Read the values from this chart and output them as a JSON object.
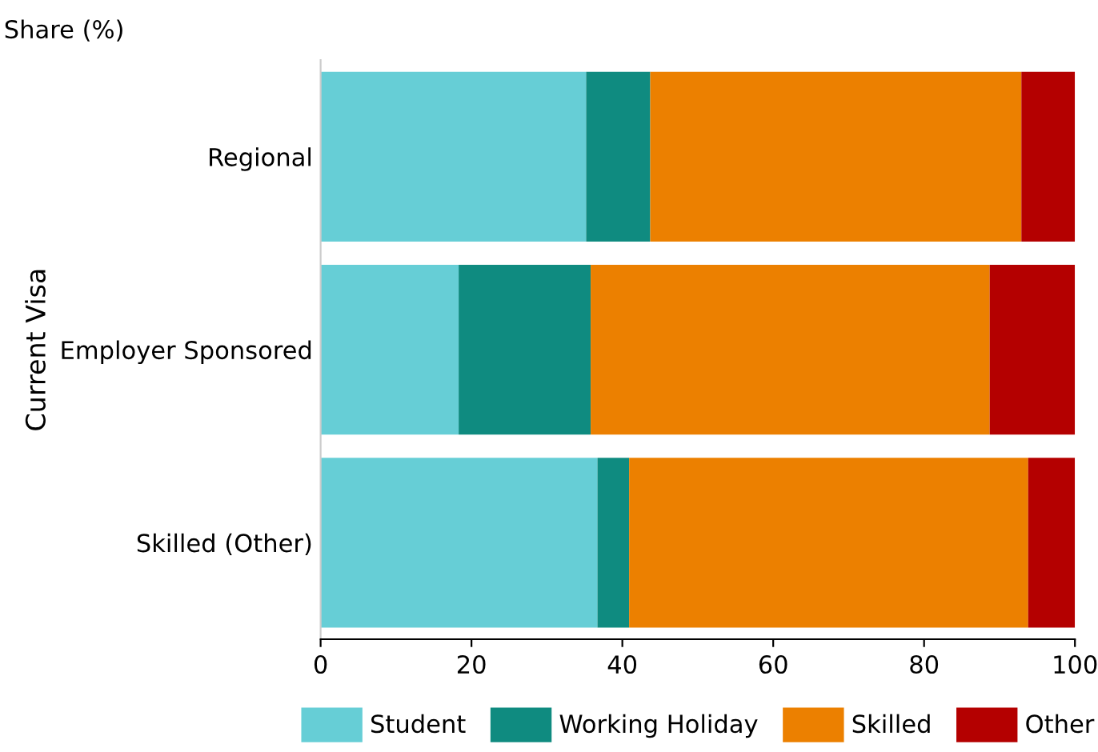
{
  "chart_data": {
    "type": "bar",
    "orientation": "horizontal",
    "stacked": true,
    "xlabel": "Share (%)",
    "ylabel": "Current Visa",
    "categories": [
      "Regional",
      "Employer Sponsored",
      "Skilled (Other)"
    ],
    "series": [
      {
        "name": "Student",
        "color": "#66ced6",
        "values": [
          35.2,
          18.3,
          36.7
        ]
      },
      {
        "name": "Working Holiday",
        "color": "#0f8b80",
        "values": [
          8.5,
          17.5,
          4.2
        ]
      },
      {
        "name": "Skilled",
        "color": "#ec8000",
        "values": [
          49.2,
          52.9,
          52.9
        ]
      },
      {
        "name": "Other",
        "color": "#b40000",
        "values": [
          7.1,
          11.3,
          6.2
        ]
      }
    ],
    "xlim": [
      0,
      100
    ],
    "xticks": [
      0,
      20,
      40,
      60,
      80,
      100
    ],
    "grid": false,
    "legend": "bottom"
  }
}
